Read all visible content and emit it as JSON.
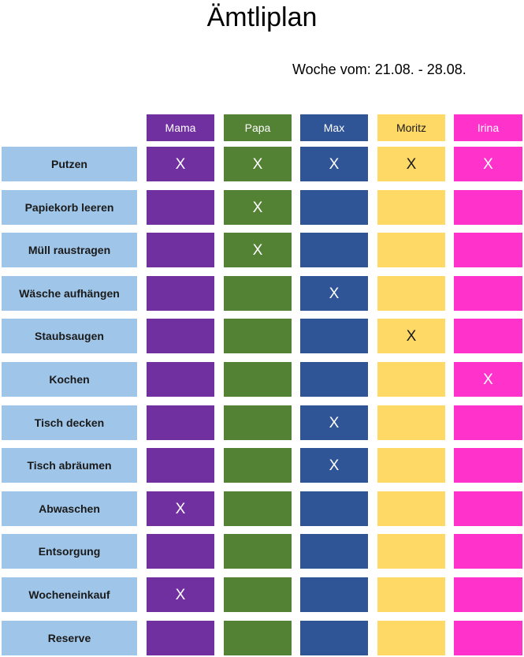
{
  "title": "Ämtliplan",
  "week_label": "Woche vom: 21.08. - 28.08.",
  "mark_symbol": "X",
  "chore_color": "#9fc5e8",
  "people": [
    {
      "name": "Mama",
      "color": "#7030a0",
      "text_color": "#ffffff"
    },
    {
      "name": "Papa",
      "color": "#548235",
      "text_color": "#ffffff"
    },
    {
      "name": "Max",
      "color": "#2f5597",
      "text_color": "#ffffff"
    },
    {
      "name": "Moritz",
      "color": "#ffd966",
      "text_color": "#1a1a1a"
    },
    {
      "name": "Irina",
      "color": "#ff33cc",
      "text_color": "#ffffff"
    }
  ],
  "chores": [
    {
      "label": "Putzen",
      "marks": [
        true,
        true,
        true,
        true,
        true
      ]
    },
    {
      "label": "Papiekorb leeren",
      "marks": [
        false,
        true,
        false,
        false,
        false
      ]
    },
    {
      "label": "Müll raustragen",
      "marks": [
        false,
        true,
        false,
        false,
        false
      ]
    },
    {
      "label": "Wäsche aufhängen",
      "marks": [
        false,
        false,
        true,
        false,
        false
      ]
    },
    {
      "label": "Staubsaugen",
      "marks": [
        false,
        false,
        false,
        true,
        false
      ]
    },
    {
      "label": "Kochen",
      "marks": [
        false,
        false,
        false,
        false,
        true
      ]
    },
    {
      "label": "Tisch decken",
      "marks": [
        false,
        false,
        true,
        false,
        false
      ]
    },
    {
      "label": "Tisch abräumen",
      "marks": [
        false,
        false,
        true,
        false,
        false
      ]
    },
    {
      "label": "Abwaschen",
      "marks": [
        true,
        false,
        false,
        false,
        false
      ]
    },
    {
      "label": "Entsorgung",
      "marks": [
        false,
        false,
        false,
        false,
        false
      ]
    },
    {
      "label": "Wocheneinkauf",
      "marks": [
        true,
        false,
        false,
        false,
        false
      ]
    },
    {
      "label": "Reserve",
      "marks": [
        false,
        false,
        false,
        false,
        false
      ]
    }
  ]
}
